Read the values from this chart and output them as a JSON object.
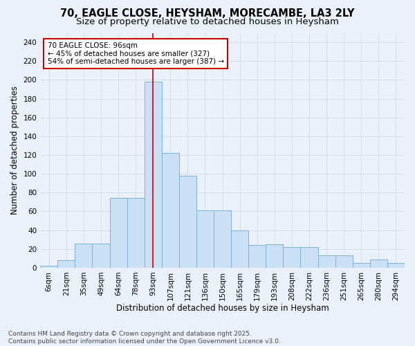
{
  "title_line1": "70, EAGLE CLOSE, HEYSHAM, MORECAMBE, LA3 2LY",
  "title_line2": "Size of property relative to detached houses in Heysham",
  "xlabel": "Distribution of detached houses by size in Heysham",
  "ylabel": "Number of detached properties",
  "categories": [
    "6sqm",
    "21sqm",
    "35sqm",
    "49sqm",
    "64sqm",
    "78sqm",
    "93sqm",
    "107sqm",
    "121sqm",
    "136sqm",
    "150sqm",
    "165sqm",
    "179sqm",
    "193sqm",
    "208sqm",
    "222sqm",
    "236sqm",
    "251sqm",
    "265sqm",
    "280sqm",
    "294sqm"
  ],
  "values": [
    2,
    8,
    26,
    26,
    74,
    74,
    198,
    122,
    98,
    61,
    61,
    40,
    24,
    25,
    22,
    22,
    13,
    13,
    5,
    9,
    5
  ],
  "bar_color": "#cce0f5",
  "bar_edge_color": "#7ab3d9",
  "highlight_line_color": "#cc0000",
  "highlight_bar_index": 6,
  "annotation_text": "70 EAGLE CLOSE: 96sqm\n← 45% of detached houses are smaller (327)\n54% of semi-detached houses are larger (387) →",
  "annotation_box_facecolor": "#ffffff",
  "annotation_box_edgecolor": "#cc0000",
  "ylim": [
    0,
    250
  ],
  "yticks": [
    0,
    20,
    40,
    60,
    80,
    100,
    120,
    140,
    160,
    180,
    200,
    220,
    240
  ],
  "footer": "Contains HM Land Registry data © Crown copyright and database right 2025.\nContains public sector information licensed under the Open Government Licence v3.0.",
  "bg_color": "#eaf1fb",
  "grid_color": "#d0dce8",
  "title_fontsize": 10.5,
  "subtitle_fontsize": 9.5,
  "axis_label_fontsize": 8.5,
  "tick_fontsize": 7.5,
  "annotation_fontsize": 7.5,
  "footer_fontsize": 6.5
}
